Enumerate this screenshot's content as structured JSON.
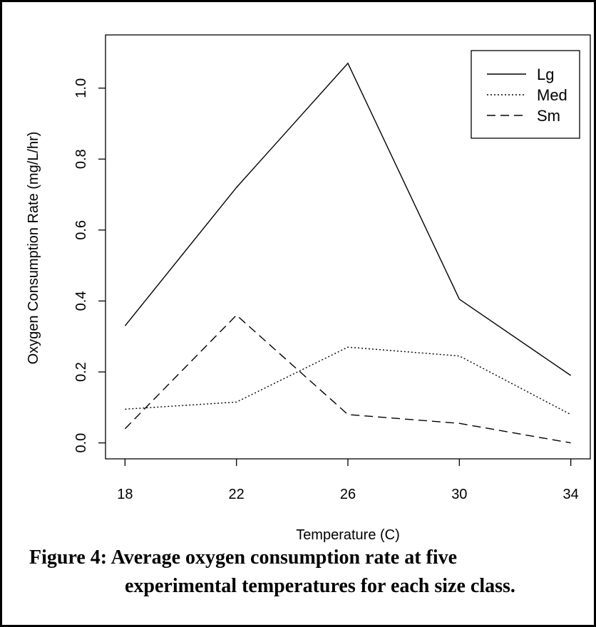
{
  "chart_data": {
    "type": "line",
    "xlabel": "Temperature (C)",
    "ylabel": "Oxygen Consumption Rate (mg/L/hr)",
    "x": [
      18,
      22,
      26,
      30,
      34
    ],
    "x_ticks": [
      "18",
      "22",
      "26",
      "30",
      "34"
    ],
    "y_ticks": [
      "0.0",
      "0.2",
      "0.4",
      "0.6",
      "0.8",
      "1.0"
    ],
    "xlim": [
      17.3,
      34.7
    ],
    "ylim": [
      -0.045,
      1.15
    ],
    "series": [
      {
        "name": "Lg",
        "style": "solid",
        "values": [
          0.33,
          0.72,
          1.07,
          0.405,
          0.19
        ]
      },
      {
        "name": "Med",
        "style": "dotted",
        "values": [
          0.095,
          0.115,
          0.27,
          0.245,
          0.08
        ]
      },
      {
        "name": "Sm",
        "style": "dashed",
        "values": [
          0.04,
          0.36,
          0.08,
          0.055,
          0.0
        ]
      }
    ],
    "legend_position": "top-right",
    "grid": false
  },
  "caption": {
    "line1": "Figure 4: Average oxygen consumption rate at five",
    "line2": "experimental temperatures for each size class."
  }
}
